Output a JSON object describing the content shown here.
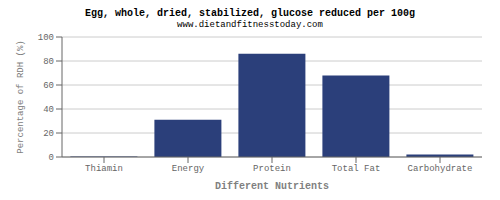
{
  "chart_data": {
    "type": "bar",
    "title": "Egg, whole, dried, stabilized, glucose reduced per 100g",
    "subtitle": "www.dietandfitnesstoday.com",
    "xlabel": "Different Nutrients",
    "ylabel": "Percentage of RDH (%)",
    "categories": [
      "Thiamin",
      "Energy",
      "Protein",
      "Total Fat",
      "Carbohydrate"
    ],
    "values": [
      0.5,
      31,
      86,
      68,
      2
    ],
    "color": "#2b3f7a",
    "ylim": [
      0,
      100
    ],
    "yticks": [
      0,
      20,
      40,
      60,
      80,
      100
    ],
    "grid": true
  }
}
